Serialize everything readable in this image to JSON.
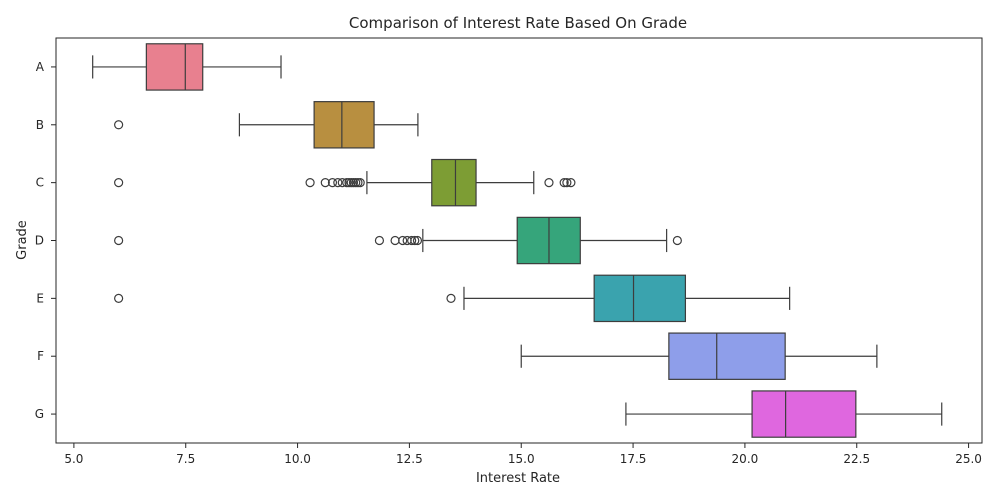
{
  "chart_data": {
    "type": "boxplot",
    "title": "Comparison of Interest Rate Based On Grade",
    "xlabel": "Interest Rate",
    "ylabel": "Grade",
    "xlim": [
      4.6,
      25.3
    ],
    "xticks": [
      5.0,
      7.5,
      10.0,
      12.5,
      15.0,
      17.5,
      20.0,
      22.5,
      25.0
    ],
    "xtick_labels": [
      "5.0",
      "7.5",
      "10.0",
      "12.5",
      "15.0",
      "17.5",
      "20.0",
      "22.5",
      "25.0"
    ],
    "grid": false,
    "orientation": "horizontal",
    "series": [
      {
        "category": "A",
        "color": "#e8808f",
        "whisker_low": 5.42,
        "q1": 6.62,
        "median": 7.49,
        "q3": 7.88,
        "whisker_high": 9.63,
        "outliers": []
      },
      {
        "category": "B",
        "color": "#b88f40",
        "whisker_low": 8.7,
        "q1": 10.37,
        "median": 10.99,
        "q3": 11.71,
        "whisker_high": 12.69,
        "outliers": [
          6.0
        ]
      },
      {
        "category": "C",
        "color": "#7d9d34",
        "whisker_low": 11.55,
        "q1": 13.0,
        "median": 13.53,
        "q3": 13.99,
        "whisker_high": 15.28,
        "outliers": [
          6.0,
          10.28,
          10.62,
          10.78,
          10.9,
          11.0,
          11.1,
          11.15,
          11.2,
          11.25,
          11.3,
          11.35,
          11.4,
          15.62,
          15.96,
          16.02,
          16.11
        ]
      },
      {
        "category": "D",
        "color": "#36a57b",
        "whisker_low": 12.8,
        "q1": 14.91,
        "median": 15.62,
        "q3": 16.32,
        "whisker_high": 18.25,
        "outliers": [
          6.0,
          11.83,
          12.18,
          12.35,
          12.45,
          12.55,
          12.62,
          12.68,
          18.49
        ]
      },
      {
        "category": "E",
        "color": "#3aa3ae",
        "whisker_low": 13.72,
        "q1": 16.63,
        "median": 17.51,
        "q3": 18.67,
        "whisker_high": 21.0,
        "outliers": [
          6.0,
          13.43
        ]
      },
      {
        "category": "F",
        "color": "#8e9eea",
        "whisker_low": 15.0,
        "q1": 18.3,
        "median": 19.37,
        "q3": 20.9,
        "whisker_high": 22.95,
        "outliers": []
      },
      {
        "category": "G",
        "color": "#df67df",
        "whisker_low": 17.34,
        "q1": 20.16,
        "median": 20.91,
        "q3": 22.48,
        "whisker_high": 24.4,
        "outliers": []
      }
    ]
  }
}
